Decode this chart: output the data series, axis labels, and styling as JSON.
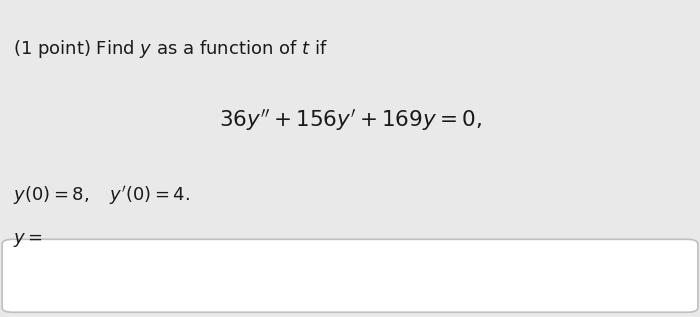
{
  "bg_color": "#e9e9e9",
  "box_color": "#ffffff",
  "box_border_color": "#c0c0c0",
  "title_text": "(1 point) Find $y$ as a function of $t$ if",
  "equation_text": "$36y'' + 156y' + 169y = 0,$",
  "ic_text": "$y(0) = 8, \\quad y'(0) = 4.$",
  "answer_label": "$y =$",
  "title_fontsize": 13,
  "eq_fontsize": 15.5,
  "ic_fontsize": 13,
  "ans_fontsize": 13,
  "text_color": "#1a1a1a"
}
